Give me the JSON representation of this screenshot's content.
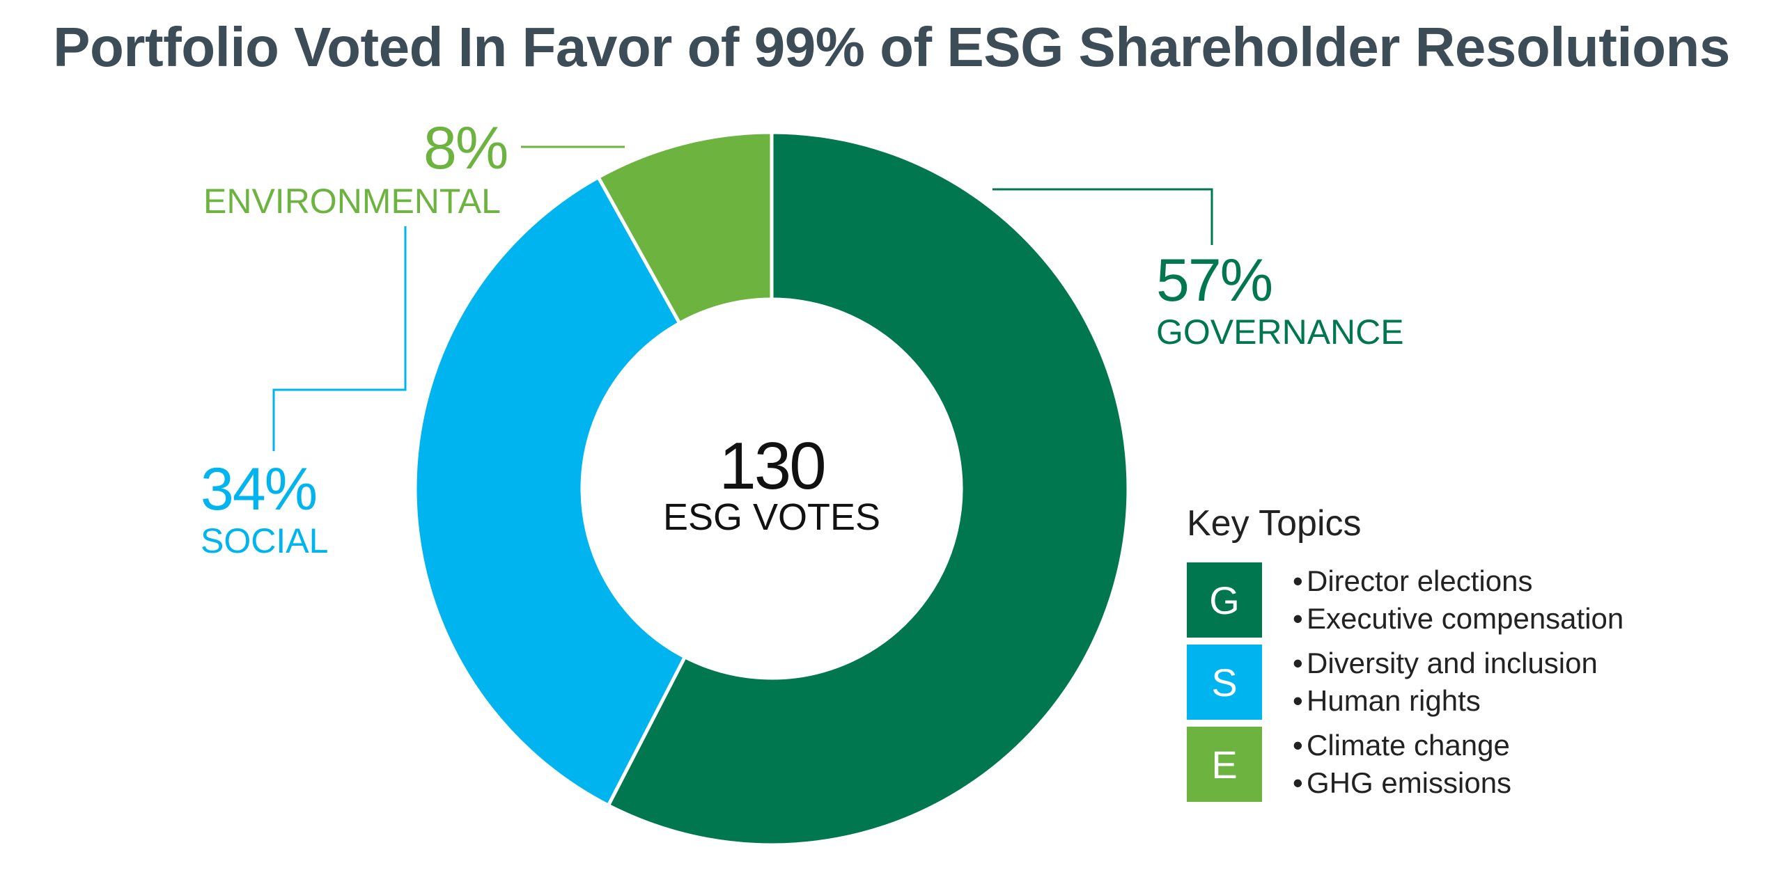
{
  "title": "Portfolio Voted In Favor of 99% of ESG Shareholder Resolutions",
  "center": {
    "value": "130",
    "label": "ESG VOTES"
  },
  "colors": {
    "governance": "#00774f",
    "social": "#00b5ef",
    "environmental": "#6cb33f",
    "title": "#3c4d58"
  },
  "chart_data": {
    "type": "pie",
    "title": "Portfolio Voted In Favor of 99% of ESG Shareholder Resolutions",
    "total": 130,
    "slices": [
      {
        "label": "GOVERNANCE",
        "value": 57,
        "value_label": "57%",
        "color": "#00774f"
      },
      {
        "label": "SOCIAL",
        "value": 34,
        "value_label": "34%",
        "color": "#00b5ef"
      },
      {
        "label": "ENVIRONMENTAL",
        "value": 8,
        "value_label": "8%",
        "color": "#6cb33f"
      }
    ]
  },
  "key": {
    "title": "Key Topics",
    "rows": [
      {
        "letter": "G",
        "color": "#00774f",
        "items": [
          "Director elections",
          "Executive compensation"
        ]
      },
      {
        "letter": "S",
        "color": "#00b5ef",
        "items": [
          "Diversity and inclusion",
          "Human rights"
        ]
      },
      {
        "letter": "E",
        "color": "#6cb33f",
        "items": [
          "Climate change",
          "GHG emissions"
        ]
      }
    ]
  }
}
